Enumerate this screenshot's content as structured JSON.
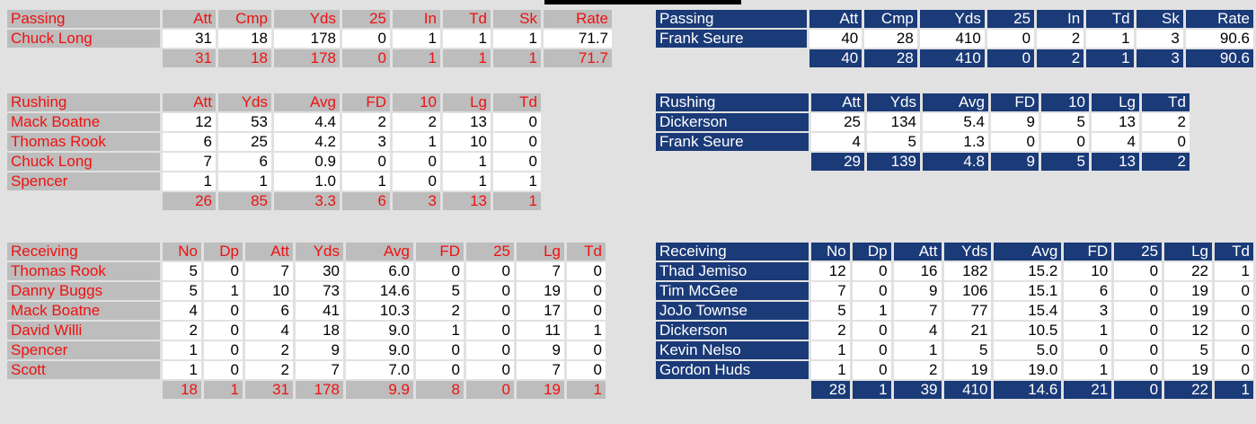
{
  "colors": {
    "home_accent": "#ee1111",
    "home_bg": "#bdbdbd",
    "away_bg": "#1a3a78",
    "page_bg": "#e1e1e1"
  },
  "home": {
    "passing": {
      "headers": [
        "Passing",
        "Att",
        "Cmp",
        "Yds",
        "25",
        "In",
        "Td",
        "Sk",
        "Rate"
      ],
      "rows": [
        [
          "Chuck Long",
          "31",
          "18",
          "178",
          "0",
          "1",
          "1",
          "1",
          "71.7"
        ]
      ],
      "totals": [
        "31",
        "18",
        "178",
        "0",
        "1",
        "1",
        "1",
        "71.7"
      ]
    },
    "rushing": {
      "headers": [
        "Rushing",
        "Att",
        "Yds",
        "Avg",
        "FD",
        "10",
        "Lg",
        "Td"
      ],
      "rows": [
        [
          "Mack Boatne",
          "12",
          "53",
          "4.4",
          "2",
          "2",
          "13",
          "0"
        ],
        [
          "Thomas Rook",
          "6",
          "25",
          "4.2",
          "3",
          "1",
          "10",
          "0"
        ],
        [
          "Chuck Long",
          "7",
          "6",
          "0.9",
          "0",
          "0",
          "1",
          "0"
        ],
        [
          "Spencer",
          "1",
          "1",
          "1.0",
          "1",
          "0",
          "1",
          "1"
        ]
      ],
      "totals": [
        "26",
        "85",
        "3.3",
        "6",
        "3",
        "13",
        "1"
      ]
    },
    "receiving": {
      "headers": [
        "Receiving",
        "No",
        "Dp",
        "Att",
        "Yds",
        "Avg",
        "FD",
        "25",
        "Lg",
        "Td"
      ],
      "rows": [
        [
          "Thomas Rook",
          "5",
          "0",
          "7",
          "30",
          "6.0",
          "0",
          "0",
          "7",
          "0"
        ],
        [
          "Danny Buggs",
          "5",
          "1",
          "10",
          "73",
          "14.6",
          "5",
          "0",
          "19",
          "0"
        ],
        [
          "Mack Boatne",
          "4",
          "0",
          "6",
          "41",
          "10.3",
          "2",
          "0",
          "17",
          "0"
        ],
        [
          "David Willi",
          "2",
          "0",
          "4",
          "18",
          "9.0",
          "1",
          "0",
          "11",
          "1"
        ],
        [
          "Spencer",
          "1",
          "0",
          "2",
          "9",
          "9.0",
          "0",
          "0",
          "9",
          "0"
        ],
        [
          "Scott",
          "1",
          "0",
          "2",
          "7",
          "7.0",
          "0",
          "0",
          "7",
          "0"
        ]
      ],
      "totals": [
        "18",
        "1",
        "31",
        "178",
        "9.9",
        "8",
        "0",
        "19",
        "1"
      ]
    }
  },
  "away": {
    "passing": {
      "headers": [
        "Passing",
        "Att",
        "Cmp",
        "Yds",
        "25",
        "In",
        "Td",
        "Sk",
        "Rate"
      ],
      "rows": [
        [
          "Frank Seure",
          "40",
          "28",
          "410",
          "0",
          "2",
          "1",
          "3",
          "90.6"
        ]
      ],
      "totals": [
        "40",
        "28",
        "410",
        "0",
        "2",
        "1",
        "3",
        "90.6"
      ]
    },
    "rushing": {
      "headers": [
        "Rushing",
        "Att",
        "Yds",
        "Avg",
        "FD",
        "10",
        "Lg",
        "Td"
      ],
      "rows": [
        [
          "Dickerson",
          "25",
          "134",
          "5.4",
          "9",
          "5",
          "13",
          "2"
        ],
        [
          "Frank Seure",
          "4",
          "5",
          "1.3",
          "0",
          "0",
          "4",
          "0"
        ]
      ],
      "totals": [
        "29",
        "139",
        "4.8",
        "9",
        "5",
        "13",
        "2"
      ]
    },
    "receiving": {
      "headers": [
        "Receiving",
        "No",
        "Dp",
        "Att",
        "Yds",
        "Avg",
        "FD",
        "25",
        "Lg",
        "Td"
      ],
      "rows": [
        [
          "Thad Jemiso",
          "12",
          "0",
          "16",
          "182",
          "15.2",
          "10",
          "0",
          "22",
          "1"
        ],
        [
          "Tim McGee",
          "7",
          "0",
          "9",
          "106",
          "15.1",
          "6",
          "0",
          "19",
          "0"
        ],
        [
          "JoJo Townse",
          "5",
          "1",
          "7",
          "77",
          "15.4",
          "3",
          "0",
          "19",
          "0"
        ],
        [
          "Dickerson",
          "2",
          "0",
          "4",
          "21",
          "10.5",
          "1",
          "0",
          "12",
          "0"
        ],
        [
          "Kevin Nelso",
          "1",
          "0",
          "1",
          "5",
          "5.0",
          "0",
          "0",
          "5",
          "0"
        ],
        [
          "Gordon Huds",
          "1",
          "0",
          "2",
          "19",
          "19.0",
          "1",
          "0",
          "19",
          "0"
        ]
      ],
      "totals": [
        "28",
        "1",
        "39",
        "410",
        "14.6",
        "21",
        "0",
        "22",
        "1"
      ]
    }
  }
}
